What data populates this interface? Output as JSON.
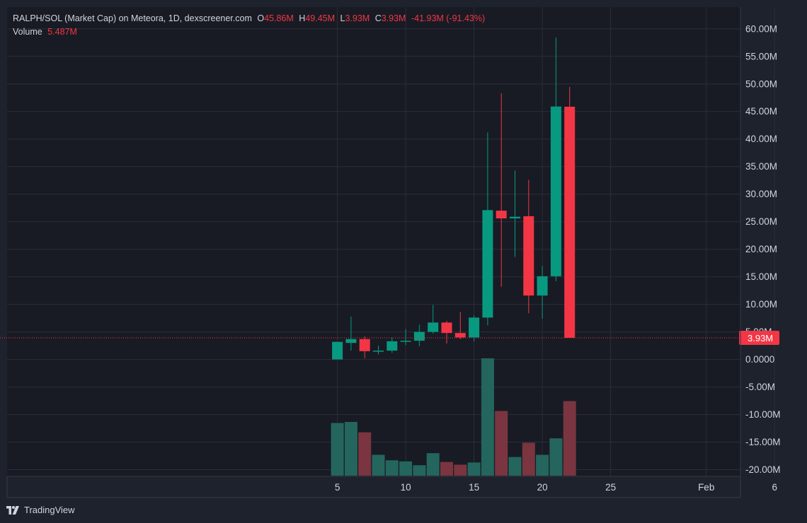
{
  "legend": {
    "title": "RALPH/SOL (Market Cap) on Meteora, 1D, dexscreener.com",
    "o_label": "O",
    "o_value": "45.86M",
    "h_label": "H",
    "h_value": "49.45M",
    "l_label": "L",
    "l_value": "3.93M",
    "c_label": "C",
    "c_value": "3.93M",
    "change": "-41.93M (-91.43%)",
    "volume_label": "Volume",
    "volume_value": "5.487M"
  },
  "price_label": "3.93M",
  "brand": {
    "name": "TradingView",
    "logo_icon": "tradingview-logo-icon"
  },
  "colors": {
    "background": "#1e222d",
    "grid": "#2a2e39",
    "up": "#089981",
    "down": "#f23645",
    "text": "#d1d4dc"
  },
  "chart_data": {
    "type": "candlestick",
    "y_axis": {
      "range": [
        -21000000,
        62000000
      ],
      "ticks": [
        60000000,
        55000000,
        50000000,
        45000000,
        40000000,
        35000000,
        30000000,
        25000000,
        20000000,
        15000000,
        10000000,
        5000000,
        0,
        -5000000,
        -10000000,
        -15000000,
        -20000000
      ],
      "tick_labels": [
        "60.00M",
        "55.00M",
        "50.00M",
        "45.00M",
        "40.00M",
        "35.00M",
        "30.00M",
        "25.00M",
        "20.00M",
        "15.00M",
        "10.00M",
        "5.00M",
        "0.0000",
        "-5.00M",
        "-10.00M",
        "-15.00M",
        "-20.00M"
      ],
      "position": "right"
    },
    "x_axis": {
      "range_days": [
        -2,
        39
      ],
      "tick_days": [
        5,
        10,
        15,
        20,
        25,
        32,
        37
      ],
      "tick_labels": [
        "5",
        "10",
        "15",
        "20",
        "25",
        "Feb",
        "6"
      ]
    },
    "grid": true,
    "last_price": 3930000,
    "candles": [
      {
        "day": 5,
        "open": 0,
        "high": 3000000,
        "low": 0,
        "close": 3200000
      },
      {
        "day": 6,
        "open": 3000000,
        "high": 7800000,
        "low": 1600000,
        "close": 3700000
      },
      {
        "day": 7,
        "open": 3700000,
        "high": 4200000,
        "low": 200000,
        "close": 1500000
      },
      {
        "day": 8,
        "open": 1500000,
        "high": 2500000,
        "low": 900000,
        "close": 1600000
      },
      {
        "day": 9,
        "open": 1600000,
        "high": 4000000,
        "low": 1200000,
        "close": 3300000
      },
      {
        "day": 10,
        "open": 3300000,
        "high": 5500000,
        "low": 2600000,
        "close": 3400000
      },
      {
        "day": 11,
        "open": 3400000,
        "high": 6300000,
        "low": 2400000,
        "close": 5000000
      },
      {
        "day": 12,
        "open": 5000000,
        "high": 9900000,
        "low": 4700000,
        "close": 6700000
      },
      {
        "day": 13,
        "open": 6700000,
        "high": 7000000,
        "low": 2900000,
        "close": 4800000
      },
      {
        "day": 14,
        "open": 4800000,
        "high": 8600000,
        "low": 3700000,
        "close": 4000000
      },
      {
        "day": 15,
        "open": 4000000,
        "high": 8000000,
        "low": 3300000,
        "close": 7600000
      },
      {
        "day": 16,
        "open": 7600000,
        "high": 41200000,
        "low": 6200000,
        "close": 27100000
      },
      {
        "day": 17,
        "open": 27000000,
        "high": 48300000,
        "low": 13200000,
        "close": 25600000
      },
      {
        "day": 18,
        "open": 25600000,
        "high": 34300000,
        "low": 18600000,
        "close": 25900000
      },
      {
        "day": 19,
        "open": 26000000,
        "high": 32600000,
        "low": 8400000,
        "close": 11600000
      },
      {
        "day": 20,
        "open": 11600000,
        "high": 17000000,
        "low": 7400000,
        "close": 15100000
      },
      {
        "day": 21,
        "open": 15100000,
        "high": 58400000,
        "low": 14200000,
        "close": 45900000
      },
      {
        "day": 22,
        "open": 45860000,
        "high": 49450000,
        "low": 3930000,
        "close": 3930000
      }
    ],
    "volume": [
      {
        "day": 5,
        "value": 9.6,
        "dir": "up"
      },
      {
        "day": 6,
        "value": 9.8,
        "dir": "up"
      },
      {
        "day": 7,
        "value": 7.9,
        "dir": "down"
      },
      {
        "day": 8,
        "value": 3.8,
        "dir": "up"
      },
      {
        "day": 9,
        "value": 2.8,
        "dir": "up"
      },
      {
        "day": 10,
        "value": 2.6,
        "dir": "up"
      },
      {
        "day": 11,
        "value": 1.9,
        "dir": "up"
      },
      {
        "day": 12,
        "value": 4.1,
        "dir": "up"
      },
      {
        "day": 13,
        "value": 2.5,
        "dir": "down"
      },
      {
        "day": 14,
        "value": 2.0,
        "dir": "down"
      },
      {
        "day": 15,
        "value": 2.4,
        "dir": "up"
      },
      {
        "day": 16,
        "value": 21.4,
        "dir": "up"
      },
      {
        "day": 17,
        "value": 11.8,
        "dir": "down"
      },
      {
        "day": 18,
        "value": 3.4,
        "dir": "up"
      },
      {
        "day": 19,
        "value": 6.0,
        "dir": "down"
      },
      {
        "day": 20,
        "value": 3.8,
        "dir": "up"
      },
      {
        "day": 21,
        "value": 6.8,
        "dir": "up"
      },
      {
        "day": 22,
        "value": 13.6,
        "dir": "down"
      }
    ],
    "volume_max": 21.4
  }
}
